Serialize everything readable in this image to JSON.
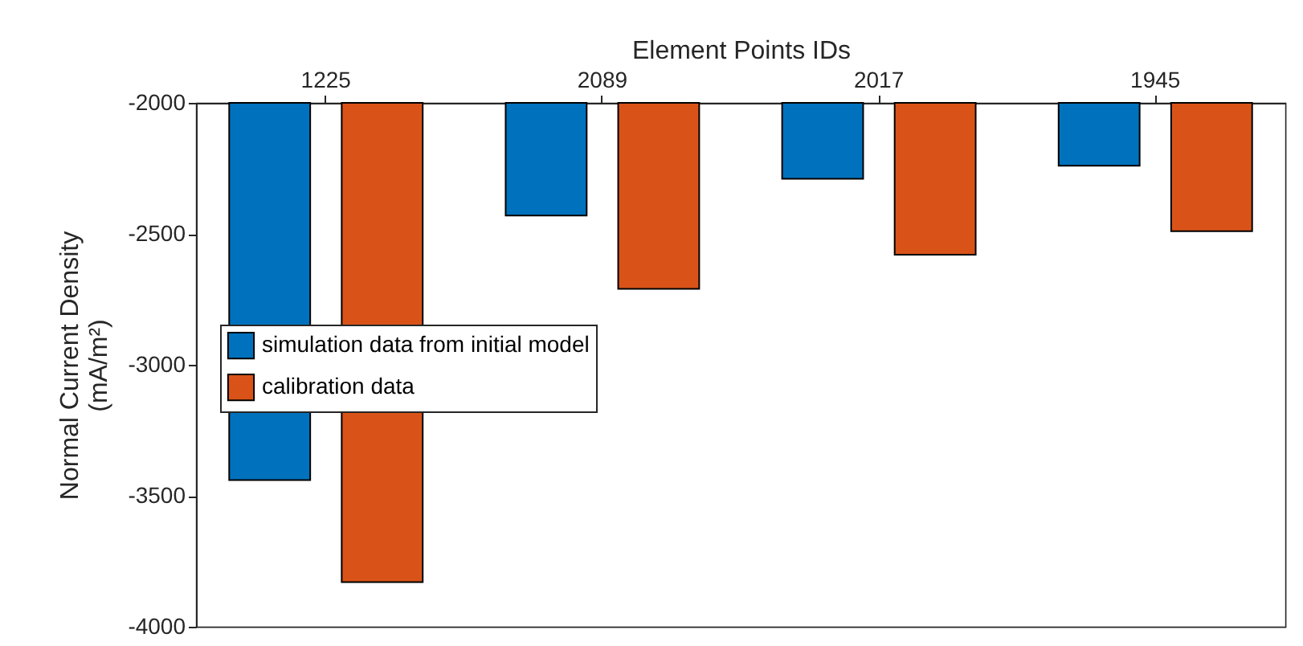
{
  "chart_data": {
    "type": "bar",
    "xlabel": "Element Points IDs",
    "ylabel": "Normal Current Density\n(mA/m²)",
    "categories": [
      "1225",
      "2089",
      "2017",
      "1945"
    ],
    "series": [
      {
        "name": "simulation data from initial model",
        "color": "#0072bd",
        "values": [
          -3440,
          -2430,
          -2290,
          -2240
        ]
      },
      {
        "name": "calibration data",
        "color": "#d95319",
        "values": [
          -3830,
          -2710,
          -2580,
          -2490
        ]
      }
    ],
    "ylim": [
      -4000,
      -2000
    ],
    "yticks": [
      -4000,
      -3500,
      -3000,
      -2500,
      -2000
    ],
    "legend": "left",
    "grid": false
  }
}
